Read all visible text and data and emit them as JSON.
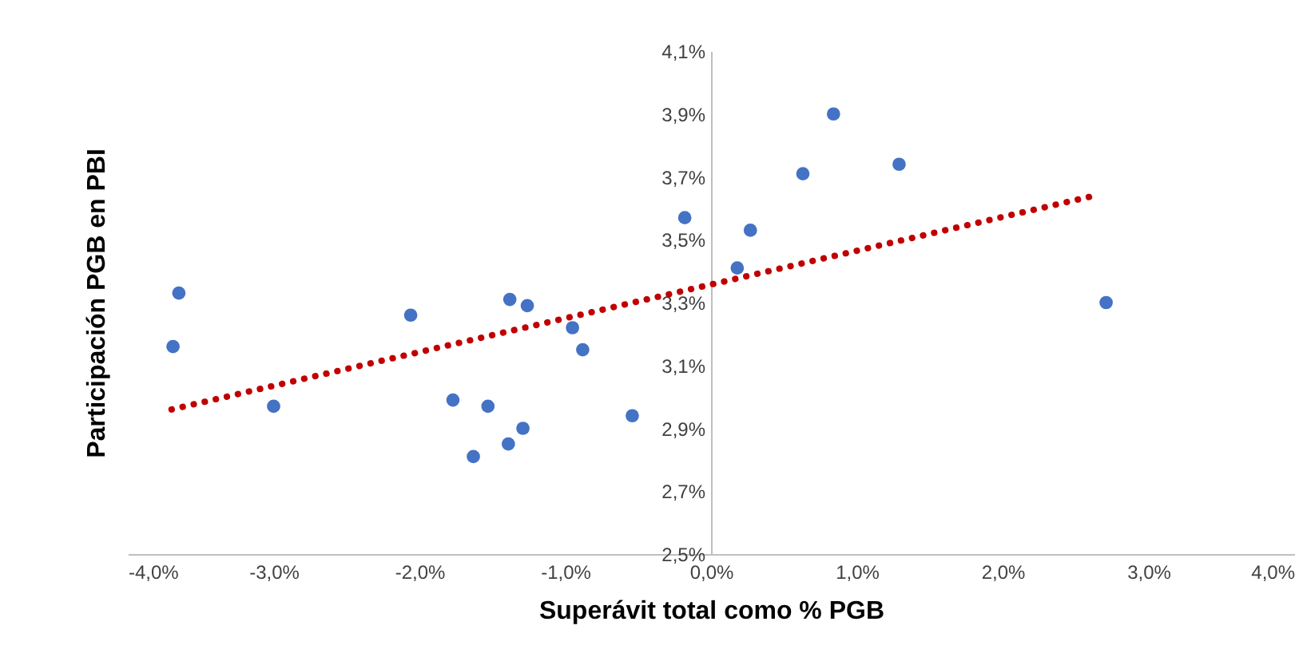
{
  "chart_data": {
    "type": "scatter",
    "xlabel": "Superávit total como % PGB",
    "ylabel": "Participación PGB en PBI",
    "xlim": [
      -4.0,
      4.0
    ],
    "ylim": [
      2.5,
      4.1
    ],
    "xticks": [
      {
        "value": -4,
        "label": "-4,0%"
      },
      {
        "value": -3,
        "label": "-3,0%"
      },
      {
        "value": -2,
        "label": "-2,0%"
      },
      {
        "value": -1,
        "label": "-1,0%"
      },
      {
        "value": 0,
        "label": "0,0%"
      },
      {
        "value": 1,
        "label": "1,0%"
      },
      {
        "value": 2,
        "label": "2,0%"
      },
      {
        "value": 3,
        "label": "3,0%"
      },
      {
        "value": 4,
        "label": "4,0%"
      }
    ],
    "yticks": [
      {
        "value": 2.5,
        "label": "2,5%"
      },
      {
        "value": 2.7,
        "label": "2,7%"
      },
      {
        "value": 2.9,
        "label": "2,9%"
      },
      {
        "value": 3.1,
        "label": "3,1%"
      },
      {
        "value": 3.3,
        "label": "3,3%"
      },
      {
        "value": 3.5,
        "label": "3,5%"
      },
      {
        "value": 3.7,
        "label": "3,7%"
      },
      {
        "value": 3.9,
        "label": "3,9%"
      },
      {
        "value": 4.1,
        "label": "4,1%"
      }
    ],
    "grid": false,
    "series": [
      {
        "type": "scatter",
        "color": "#4472c4",
        "marker": "circle",
        "x": [
          -3.65,
          -3.69,
          -3.0,
          -2.06,
          -1.77,
          -1.53,
          -1.38,
          -1.26,
          -1.63,
          -1.39,
          -1.29,
          -0.95,
          -0.88,
          -0.54,
          -0.18,
          0.18,
          0.27,
          0.63,
          0.84,
          1.29,
          2.71
        ],
        "values": [
          3.33,
          3.16,
          2.97,
          3.26,
          2.99,
          2.97,
          3.31,
          3.29,
          2.81,
          2.85,
          2.9,
          3.22,
          3.15,
          2.94,
          3.57,
          3.41,
          3.53,
          3.71,
          3.9,
          3.74,
          3.3
        ]
      },
      {
        "type": "line",
        "color": "#c00000",
        "line_style": "dotted",
        "marker": "none",
        "x": [
          -3.7,
          2.63
        ],
        "values": [
          2.96,
          3.64
        ]
      }
    ]
  }
}
